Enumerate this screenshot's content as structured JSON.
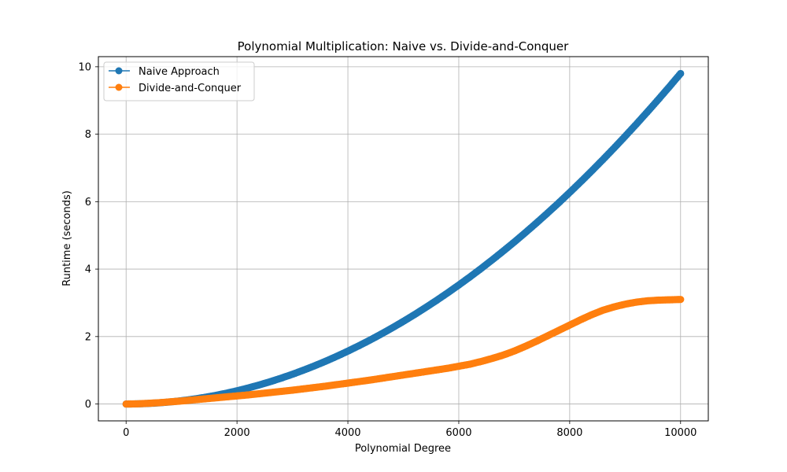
{
  "chart_data": {
    "type": "line",
    "title": "Polynomial Multiplication: Naive vs. Divide-and-Conquer",
    "xlabel": "Polynomial Degree",
    "ylabel": "Runtime (seconds)",
    "xlim": [
      -500,
      10500
    ],
    "ylim": [
      -0.5,
      10.3
    ],
    "xticks": [
      0,
      2000,
      4000,
      6000,
      8000,
      10000
    ],
    "yticks": [
      0,
      2,
      4,
      6,
      8,
      10
    ],
    "grid": true,
    "legend_position": "top-left",
    "marker": "circle",
    "series": [
      {
        "name": "Naive Approach",
        "color": "#1f77b4",
        "x": [
          0,
          200,
          400,
          600,
          800,
          1000,
          1200,
          1400,
          1600,
          1800,
          2000,
          2200,
          2400,
          2600,
          2800,
          3000,
          3200,
          3400,
          3600,
          3800,
          4000,
          4200,
          4400,
          4600,
          4800,
          5000,
          5200,
          5400,
          5600,
          5800,
          6000,
          6200,
          6400,
          6600,
          6800,
          7000,
          7200,
          7400,
          7600,
          7800,
          8000,
          8200,
          8400,
          8600,
          8800,
          9000,
          9200,
          9400,
          9600,
          9800,
          10000
        ],
        "y": [
          0.0,
          0.004,
          0.016,
          0.035,
          0.063,
          0.098,
          0.141,
          0.192,
          0.251,
          0.318,
          0.392,
          0.475,
          0.565,
          0.663,
          0.769,
          0.882,
          1.004,
          1.133,
          1.27,
          1.415,
          1.568,
          1.729,
          1.897,
          2.074,
          2.258,
          2.45,
          2.65,
          2.858,
          3.073,
          3.297,
          3.528,
          3.767,
          4.014,
          4.269,
          4.532,
          4.802,
          5.081,
          5.367,
          5.661,
          5.962,
          6.272,
          6.59,
          6.915,
          7.248,
          7.589,
          7.938,
          8.295,
          8.66,
          9.032,
          9.412,
          9.8
        ]
      },
      {
        "name": "Divide-and-Conquer",
        "color": "#ff7f0e",
        "x": [
          0,
          200,
          400,
          600,
          800,
          1000,
          1200,
          1400,
          1600,
          1800,
          2000,
          2200,
          2400,
          2600,
          2800,
          3000,
          3200,
          3400,
          3600,
          3800,
          4000,
          4200,
          4400,
          4600,
          4800,
          5000,
          5200,
          5400,
          5600,
          5800,
          6000,
          6200,
          6400,
          6600,
          6800,
          7000,
          7200,
          7400,
          7600,
          7800,
          8000,
          8200,
          8400,
          8600,
          8800,
          9000,
          9200,
          9400,
          9600,
          9800,
          10000
        ],
        "y": [
          0.0,
          0.005,
          0.02,
          0.04,
          0.065,
          0.09,
          0.12,
          0.15,
          0.18,
          0.21,
          0.24,
          0.27,
          0.305,
          0.34,
          0.375,
          0.41,
          0.45,
          0.49,
          0.53,
          0.575,
          0.62,
          0.665,
          0.71,
          0.76,
          0.81,
          0.86,
          0.91,
          0.96,
          1.01,
          1.06,
          1.12,
          1.18,
          1.26,
          1.35,
          1.45,
          1.57,
          1.71,
          1.86,
          2.02,
          2.18,
          2.34,
          2.5,
          2.65,
          2.78,
          2.88,
          2.96,
          3.02,
          3.06,
          3.08,
          3.09,
          3.1
        ]
      }
    ]
  }
}
